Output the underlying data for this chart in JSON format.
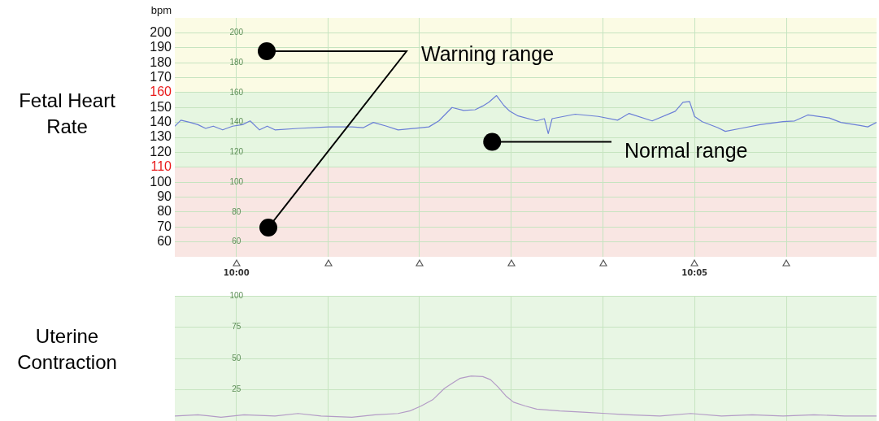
{
  "chart_data": [
    {
      "type": "line",
      "title": "Fetal Heart Rate",
      "ylabel": "bpm",
      "annotations": [
        "Warning range",
        {
          "text": "Normal range",
          "x": 10.0465,
          "y": 127
        }
      ],
      "xlim": [
        9.9888,
        10.1164
      ],
      "xticks": [
        {
          "value": 10,
          "label": "10:00"
        },
        {
          "value": 10.0167,
          "label": null
        },
        {
          "value": 10.0333,
          "label": null
        },
        {
          "value": 10.05,
          "label": null
        },
        {
          "value": 10.0667,
          "label": null
        },
        {
          "value": 10.0833,
          "label": "10:05"
        },
        {
          "value": 10.1,
          "label": null
        }
      ],
      "ylim": [
        50,
        210
      ],
      "yticks": [
        60,
        70,
        80,
        90,
        100,
        110,
        120,
        130,
        140,
        150,
        160,
        170,
        180,
        190,
        200
      ],
      "y2lim": [
        50,
        210
      ],
      "y2ticks": [
        60,
        80,
        100,
        120,
        140,
        160,
        180,
        200
      ],
      "bands": [
        {
          "axis": "y",
          "from": 160,
          "to": 210,
          "color": "#fbfbe4"
        },
        {
          "axis": "y",
          "from": 110,
          "to": 160,
          "color": "#e6f6e1"
        },
        {
          "axis": "y",
          "from": 50,
          "to": 110,
          "color": "#f9e6e3"
        }
      ],
      "grid": true,
      "marker": "none",
      "line_style": "solid",
      "series": [
        {
          "color": "#6b7fd7",
          "x": [
            9.9888,
            9.9899,
            9.9916,
            9.993,
            9.9944,
            9.9958,
            9.9975,
            9.9993,
            10.0011,
            10.0025,
            10.0042,
            10.0056,
            10.007,
            10.0112,
            10.0168,
            10.021,
            10.0231,
            10.0249,
            10.0273,
            10.0294,
            10.0336,
            10.035,
            10.0368,
            10.0392,
            10.0413,
            10.0434,
            10.0448,
            10.0459,
            10.0473,
            10.0486,
            10.0497,
            10.0511,
            10.0546,
            10.056,
            10.0567,
            10.0574,
            10.0616,
            10.0658,
            10.0693,
            10.0714,
            10.0756,
            10.0798,
            10.0812,
            10.0824,
            10.0833,
            10.0847,
            10.0875,
            10.0889,
            10.0917,
            10.0952,
            10.0994,
            10.1015,
            10.1039,
            10.1078,
            10.1099,
            10.1134,
            10.1148,
            10.1164
          ],
          "values": [
            137.5,
            141.5,
            140,
            138.5,
            136,
            137.5,
            135,
            137.5,
            138.5,
            141,
            135,
            137.5,
            135,
            136,
            137,
            137,
            136.5,
            140,
            137.5,
            135,
            136.5,
            137,
            141,
            150,
            148,
            148.5,
            151,
            153.5,
            158,
            151.5,
            147.5,
            144.5,
            141,
            142.5,
            132.5,
            142.5,
            145.5,
            144,
            141.5,
            146,
            141,
            147.5,
            153.5,
            154,
            144,
            140.5,
            136.5,
            134,
            136,
            138.5,
            140.5,
            141,
            145,
            143,
            140,
            138,
            137,
            140
          ]
        }
      ]
    },
    {
      "type": "line",
      "title": "Uterine Contraction",
      "xlim": [
        9.9888,
        10.1164
      ],
      "xticks": [
        {
          "value": 10,
          "label": null
        },
        {
          "value": 10.0167,
          "label": null
        },
        {
          "value": 10.0333,
          "label": null
        },
        {
          "value": 10.05,
          "label": null
        },
        {
          "value": 10.0667,
          "label": null
        },
        {
          "value": 10.0833,
          "label": null
        },
        {
          "value": 10.1,
          "label": null
        }
      ],
      "y2lim": [
        0,
        100
      ],
      "y2ticks": [
        25,
        50,
        75,
        100
      ],
      "tick_labels": "y",
      "grid": true,
      "marker": "none",
      "series": [
        {
          "color": "#b39bc6",
          "axis": "y2",
          "x": [
            9.9888,
            9.993,
            9.9972,
            10.0014,
            10.007,
            10.0112,
            10.0154,
            10.021,
            10.0252,
            10.0294,
            10.0315,
            10.0336,
            10.0357,
            10.0378,
            10.0392,
            10.0406,
            10.0427,
            10.0448,
            10.0462,
            10.0476,
            10.049,
            10.0504,
            10.0525,
            10.0546,
            10.0588,
            10.063,
            10.0672,
            10.0714,
            10.077,
            10.0826,
            10.0882,
            10.0938,
            10.0994,
            10.105,
            10.1106,
            10.1164
          ],
          "values": [
            4,
            5,
            3,
            5,
            4,
            6,
            4,
            3,
            5,
            6,
            8,
            12,
            17,
            26,
            30,
            34,
            36,
            35.5,
            33,
            27,
            20,
            15,
            12,
            9.5,
            8,
            7,
            6,
            5,
            4,
            6,
            4,
            5,
            4,
            5,
            4,
            4
          ]
        }
      ]
    }
  ]
}
